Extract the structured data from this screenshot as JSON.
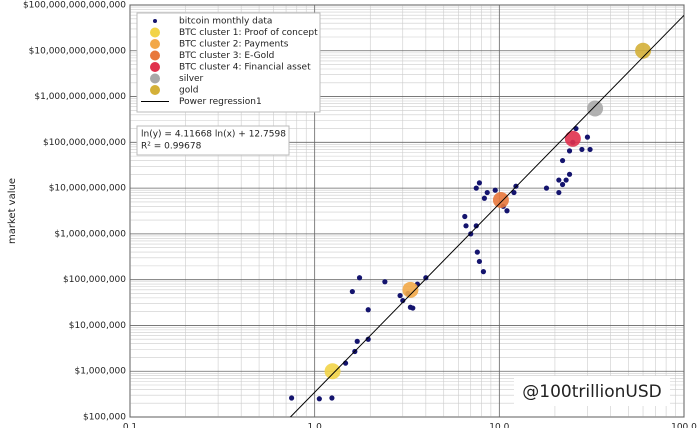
{
  "chart_data": {
    "type": "scatter",
    "y_label": "market value",
    "x_scale": "log",
    "y_scale": "log",
    "grid": true,
    "legend": "upper left",
    "xlim": [
      0.1,
      100
    ],
    "ylim": [
      100000,
      100000000000000
    ],
    "xticks": [
      0.1,
      {
        "value": 1,
        "label": "1.0"
      },
      {
        "value": 10,
        "label": "10.0"
      },
      {
        "value": 100,
        "label": "100.0"
      }
    ],
    "yticks": [
      {
        "value": 100000,
        "label": "$100,000"
      },
      {
        "value": 1000000,
        "label": "$1,000,000"
      },
      {
        "value": 10000000,
        "label": "$10,000,000"
      },
      {
        "value": 100000000,
        "label": "$100,000,000"
      },
      {
        "value": 1000000000,
        "label": "$1,000,000,000"
      },
      {
        "value": 10000000000,
        "label": "$10,000,000,000"
      },
      {
        "value": 100000000000,
        "label": "$100,000,000,000"
      },
      {
        "value": 1000000000000,
        "label": "$1,000,000,000,000"
      },
      {
        "value": 10000000000000,
        "label": "$10,000,000,000,000"
      },
      {
        "value": 100000000000000,
        "label": "$100,000,000,000,000"
      }
    ],
    "series": [
      {
        "name": "bitcoin monthly data",
        "kind": "scatter",
        "color": "#14146e",
        "x": [
          0.75,
          1.06,
          1.24,
          1.47,
          1.65,
          1.7,
          1.95,
          1.95,
          1.6,
          1.75,
          2.4,
          2.9,
          3.0,
          3.3,
          3.4,
          3.6,
          4.0,
          3.2,
          6.5,
          6.6,
          7.0,
          7.5,
          7.6,
          7.8,
          8.2,
          7.5,
          7.8,
          8.3,
          8.6,
          9.5,
          10.5,
          11,
          12,
          12.3,
          18,
          21,
          21,
          23,
          22,
          24,
          25,
          26,
          28,
          30,
          31,
          22,
          24
        ],
        "values": [
          260000,
          250000,
          260000,
          1500000,
          2700000,
          4500000,
          5000000,
          22000000,
          55000000,
          110000000,
          90000000,
          45000000,
          35000000,
          25000000,
          24000000,
          80000000,
          110000000,
          50000000,
          2400000000,
          1500000000,
          1000000000,
          1500000000,
          400000000,
          250000000,
          150000000,
          10000000000,
          13000000000,
          6000000000,
          8000000000,
          9000000000,
          4000000000,
          3200000000,
          8000000000,
          11000000000,
          10000000000,
          15000000000,
          8000000000,
          15000000000,
          40000000000,
          65000000000,
          100000000000,
          200000000000,
          70000000000,
          130000000000,
          70000000000,
          12000000000,
          20000000000
        ]
      },
      {
        "name": "BTC cluster 1: Proof of concept",
        "kind": "scatter",
        "color": "#f2d448",
        "x": [
          1.25
        ],
        "values": [
          1000000
        ]
      },
      {
        "name": "BTC cluster 2: Payments",
        "kind": "scatter",
        "color": "#f2a848",
        "x": [
          3.3
        ],
        "values": [
          60000000
        ]
      },
      {
        "name": "BTC cluster 3: E-Gold",
        "kind": "scatter",
        "color": "#e8783c",
        "x": [
          10.2
        ],
        "values": [
          5500000000
        ]
      },
      {
        "name": "BTC cluster 4: Financial asset",
        "kind": "scatter",
        "color": "#e0304c",
        "x": [
          25
        ],
        "values": [
          120000000000
        ]
      },
      {
        "name": "silver",
        "kind": "scatter",
        "color": "#a8a8a8",
        "x": [
          33
        ],
        "values": [
          550000000000
        ]
      },
      {
        "name": "gold",
        "kind": "scatter",
        "color": "#d4b038",
        "x": [
          60
        ],
        "values": [
          10000000000000
        ]
      },
      {
        "name": "Power regression1",
        "kind": "line",
        "color": "#000000",
        "x": [
          0.73,
          100
        ],
        "values": [
          95000,
          59600000000000
        ]
      }
    ],
    "annotations": [
      "ln(y) = 4.11668 ln(x) + 12.7598",
      "R² = 0.99678"
    ],
    "watermark": "@100trillionUSD"
  }
}
